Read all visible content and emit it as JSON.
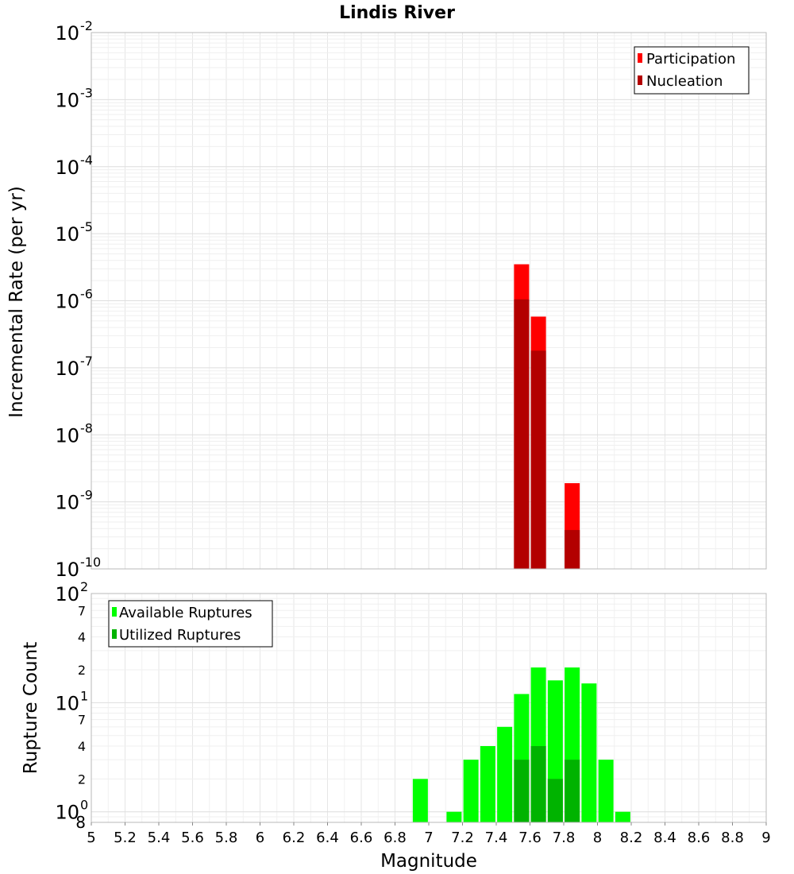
{
  "chart_data": [
    {
      "type": "bar",
      "title": "Lindis River",
      "ylabel": "Incremental Rate (per yr)",
      "xlabel": "",
      "y_scale": "log",
      "ylim": [
        1e-10,
        0.01
      ],
      "xlim": [
        5,
        9
      ],
      "y_ticks": [
        {
          "base": "10",
          "exp": "-10"
        },
        {
          "base": "10",
          "exp": "-9"
        },
        {
          "base": "10",
          "exp": "-8"
        },
        {
          "base": "10",
          "exp": "-7"
        },
        {
          "base": "10",
          "exp": "-6"
        },
        {
          "base": "10",
          "exp": "-5"
        },
        {
          "base": "10",
          "exp": "-4"
        },
        {
          "base": "10",
          "exp": "-3"
        },
        {
          "base": "10",
          "exp": "-2"
        }
      ],
      "grid": true,
      "legend_position": "top-right",
      "series": [
        {
          "name": "Participation",
          "color": "#ff0000",
          "points": [
            [
              7.55,
              3.5e-06
            ],
            [
              7.65,
              5.8e-07
            ],
            [
              7.85,
              1.9e-09
            ]
          ]
        },
        {
          "name": "Nucleation",
          "color": "#b30000",
          "points": [
            [
              7.55,
              1.05e-06
            ],
            [
              7.65,
              1.8e-07
            ],
            [
              7.85,
              3.8e-10
            ]
          ]
        }
      ]
    },
    {
      "type": "bar",
      "title": "",
      "ylabel": "Rupture Count",
      "xlabel": "Magnitude",
      "y_scale": "log",
      "ylim": [
        0.8,
        100
      ],
      "xlim": [
        5,
        9
      ],
      "x_ticks": [
        "5",
        "5.2",
        "5.4",
        "5.6",
        "5.8",
        "6",
        "6.2",
        "6.4",
        "6.6",
        "6.8",
        "7",
        "7.2",
        "7.4",
        "7.6",
        "7.8",
        "8",
        "8.2",
        "8.4",
        "8.6",
        "8.8",
        "9"
      ],
      "y_major_ticks": [
        {
          "base": "10",
          "exp": "0"
        },
        {
          "base": "10",
          "exp": "1"
        },
        {
          "base": "10",
          "exp": "2"
        }
      ],
      "y_minor_labels": [
        "8",
        "2",
        "4",
        "7",
        "2",
        "4",
        "7"
      ],
      "grid": true,
      "legend_position": "top-left",
      "series": [
        {
          "name": "Available Ruptures",
          "color": "#00ff00",
          "points": [
            [
              6.95,
              2
            ],
            [
              7.15,
              1
            ],
            [
              7.25,
              3
            ],
            [
              7.35,
              4
            ],
            [
              7.45,
              6
            ],
            [
              7.55,
              12
            ],
            [
              7.65,
              21
            ],
            [
              7.75,
              16
            ],
            [
              7.85,
              21
            ],
            [
              7.95,
              15
            ],
            [
              8.05,
              3
            ],
            [
              8.15,
              1
            ]
          ]
        },
        {
          "name": "Utilized Ruptures",
          "color": "#00b300",
          "points": [
            [
              7.55,
              3
            ],
            [
              7.65,
              4
            ],
            [
              7.75,
              2
            ],
            [
              7.85,
              3
            ]
          ]
        }
      ]
    }
  ]
}
